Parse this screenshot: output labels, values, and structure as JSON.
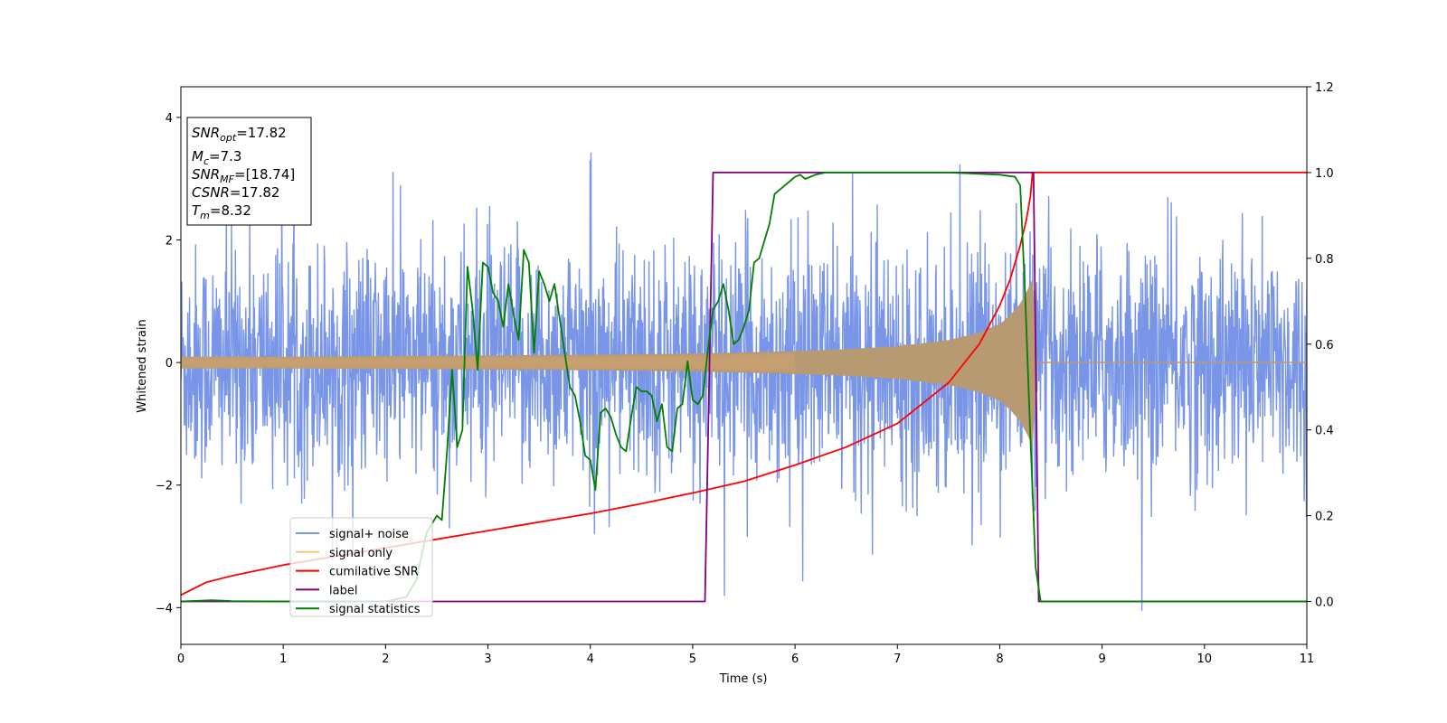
{
  "chart_data": {
    "type": "line",
    "title": "",
    "xlabel": "Time (s)",
    "ylabel": "Whitened strain",
    "ylabel_right": "",
    "xlim": [
      0,
      11
    ],
    "ylim": [
      -4.6,
      4.5
    ],
    "ylim_right": [
      -0.1,
      1.2
    ],
    "x_ticks": [
      0,
      1,
      2,
      3,
      4,
      5,
      6,
      7,
      8,
      9,
      10,
      11
    ],
    "y_ticks": [
      -4,
      -2,
      0,
      2,
      4
    ],
    "y_ticks_right": [
      0.0,
      0.2,
      0.4,
      0.6,
      0.8,
      1.0,
      1.2
    ],
    "grid": false,
    "legend_position": "lower-left",
    "legend": [
      "signal+ noise",
      "signal only",
      "cumilative SNR",
      "label",
      "signal statistics"
    ],
    "colors": {
      "noise": "#7895e8",
      "signal": "#f5c878",
      "overlap": "#b89a72",
      "snr": "#ff0000",
      "label": "#800080",
      "stats": "#007f00"
    },
    "annotation": [
      {
        "base": "SNR",
        "sub": "opt",
        "value": "=17.82"
      },
      {
        "base": "M",
        "sub": "c",
        "value": "=7.3"
      },
      {
        "base": "SNR",
        "sub": "MF",
        "value": "=[18.74]"
      },
      {
        "base": "CSNR",
        "sub": "",
        "value": "=17.82"
      },
      {
        "base": "T",
        "sub": "m",
        "value": "=8.32"
      }
    ],
    "series": [
      {
        "name": "signal+ noise",
        "axis": "left",
        "envelope": {
          "amplitude": 2.7,
          "peak": 4.05,
          "x_start": 0,
          "x_end": 11
        }
      },
      {
        "name": "signal only",
        "axis": "left",
        "envelope": {
          "x": [
            0,
            1,
            2,
            3,
            4,
            5,
            6,
            6.5,
            7,
            7.5,
            7.8,
            8.0,
            8.1,
            8.2,
            8.28,
            8.32,
            8.36,
            11
          ],
          "amp": [
            0.09,
            0.09,
            0.1,
            0.11,
            0.12,
            0.14,
            0.18,
            0.21,
            0.26,
            0.36,
            0.48,
            0.62,
            0.76,
            0.95,
            1.2,
            1.35,
            0,
            0
          ]
        }
      },
      {
        "name": "cumilative SNR",
        "axis": "right",
        "x": [
          0,
          0.25,
          0.5,
          1,
          1.5,
          2,
          2.5,
          3,
          3.5,
          4,
          4.5,
          5,
          5.5,
          6,
          6.5,
          7,
          7.5,
          7.8,
          8.0,
          8.1,
          8.2,
          8.26,
          8.3,
          8.32,
          11
        ],
        "values": [
          0.015,
          0.045,
          0.06,
          0.085,
          0.105,
          0.125,
          0.145,
          0.165,
          0.185,
          0.205,
          0.228,
          0.253,
          0.28,
          0.318,
          0.36,
          0.415,
          0.51,
          0.6,
          0.69,
          0.75,
          0.83,
          0.89,
          0.945,
          1.0,
          1.0
        ]
      },
      {
        "name": "label",
        "axis": "right",
        "x": [
          0,
          5.12,
          5.2,
          8.33,
          8.38,
          11
        ],
        "values": [
          0.0,
          0.0,
          1.0,
          1.0,
          0.0,
          0.0
        ]
      },
      {
        "name": "signal statistics",
        "axis": "right",
        "x": [
          0,
          0.3,
          0.5,
          1,
          1.5,
          2,
          2.2,
          2.3,
          2.4,
          2.45,
          2.5,
          2.55,
          2.6,
          2.65,
          2.7,
          2.75,
          2.8,
          2.85,
          2.9,
          2.95,
          3.0,
          3.05,
          3.1,
          3.15,
          3.2,
          3.25,
          3.3,
          3.35,
          3.4,
          3.45,
          3.5,
          3.55,
          3.6,
          3.65,
          3.7,
          3.75,
          3.8,
          3.85,
          3.9,
          3.95,
          4.0,
          4.05,
          4.1,
          4.15,
          4.2,
          4.25,
          4.3,
          4.35,
          4.4,
          4.45,
          4.5,
          4.55,
          4.6,
          4.65,
          4.7,
          4.75,
          4.8,
          4.85,
          4.9,
          4.95,
          5.0,
          5.05,
          5.1,
          5.15,
          5.2,
          5.25,
          5.3,
          5.35,
          5.4,
          5.45,
          5.5,
          5.55,
          5.6,
          5.65,
          5.7,
          5.75,
          5.8,
          5.85,
          5.9,
          5.95,
          6.0,
          6.05,
          6.1,
          6.2,
          6.3,
          6.5,
          7.0,
          7.5,
          8.0,
          8.15,
          8.2,
          8.25,
          8.3,
          8.35,
          8.4,
          9,
          10,
          11
        ],
        "values": [
          0.0,
          0.003,
          0.001,
          0.0,
          0.0,
          0.0,
          0.01,
          0.05,
          0.16,
          0.18,
          0.2,
          0.19,
          0.35,
          0.54,
          0.36,
          0.4,
          0.78,
          0.68,
          0.54,
          0.79,
          0.78,
          0.72,
          0.7,
          0.64,
          0.74,
          0.67,
          0.61,
          0.82,
          0.79,
          0.58,
          0.77,
          0.74,
          0.7,
          0.74,
          0.66,
          0.58,
          0.5,
          0.48,
          0.42,
          0.34,
          0.33,
          0.26,
          0.44,
          0.45,
          0.43,
          0.39,
          0.36,
          0.35,
          0.43,
          0.5,
          0.49,
          0.49,
          0.48,
          0.42,
          0.46,
          0.36,
          0.35,
          0.45,
          0.46,
          0.56,
          0.47,
          0.46,
          0.48,
          0.59,
          0.68,
          0.7,
          0.74,
          0.68,
          0.6,
          0.61,
          0.64,
          0.68,
          0.79,
          0.8,
          0.84,
          0.88,
          0.95,
          0.96,
          0.97,
          0.98,
          0.99,
          0.995,
          0.985,
          0.995,
          1.0,
          1.0,
          1.0,
          1.0,
          0.995,
          0.99,
          0.97,
          0.7,
          0.38,
          0.08,
          0.0,
          0.0,
          0.0,
          0.0
        ]
      }
    ]
  }
}
